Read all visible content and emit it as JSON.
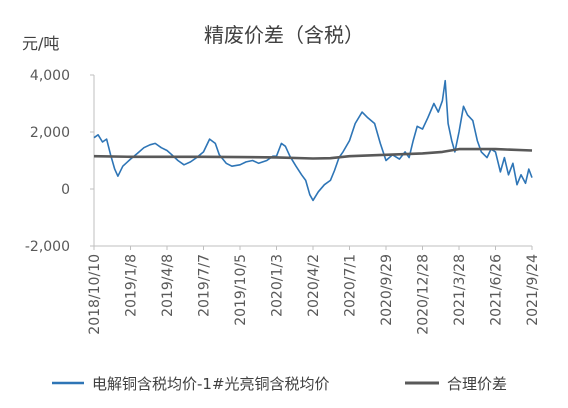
{
  "chart_data": {
    "type": "line",
    "title": "精废价差（含税）",
    "unit_label": "元/吨",
    "ylabel": "元/吨",
    "xlabel": "",
    "ylim": [
      -2000,
      4000
    ],
    "y_ticks": [
      "4,000",
      "2,000",
      "0",
      "-2,000"
    ],
    "y_tick_values": [
      4000,
      2000,
      0,
      -2000
    ],
    "x_range": [
      "2018-10-10",
      "2021-09-24"
    ],
    "x_ticks": [
      "2018/10/10",
      "2019/1/8",
      "2019/4/8",
      "2019/7/7",
      "2019/10/5",
      "2020/1/3",
      "2020/4/2",
      "2020/7/1",
      "2020/9/29",
      "2020/12/28",
      "2021/3/28",
      "2021/6/26",
      "2021/9/24"
    ],
    "x_tick_dates": [
      "2018-10-10",
      "2019-01-08",
      "2019-04-08",
      "2019-07-07",
      "2019-10-05",
      "2020-01-03",
      "2020-04-02",
      "2020-07-01",
      "2020-09-29",
      "2020-12-28",
      "2021-03-28",
      "2021-06-26",
      "2021-09-24"
    ],
    "grid": false,
    "legend_position": "bottom",
    "series": [
      {
        "name": "电解铜含税均价-1#光亮铜含税均价",
        "color": "#2e75b6",
        "points": [
          [
            "2018-10-10",
            1800
          ],
          [
            "2018-10-20",
            1900
          ],
          [
            "2018-10-31",
            1650
          ],
          [
            "2018-11-10",
            1750
          ],
          [
            "2018-11-20",
            1200
          ],
          [
            "2018-11-30",
            700
          ],
          [
            "2018-12-08",
            450
          ],
          [
            "2018-12-20",
            800
          ],
          [
            "2019-01-08",
            1050
          ],
          [
            "2019-01-25",
            1250
          ],
          [
            "2019-02-10",
            1450
          ],
          [
            "2019-02-25",
            1550
          ],
          [
            "2019-03-10",
            1600
          ],
          [
            "2019-03-25",
            1450
          ],
          [
            "2019-04-08",
            1350
          ],
          [
            "2019-04-20",
            1200
          ],
          [
            "2019-05-05",
            1000
          ],
          [
            "2019-05-20",
            850
          ],
          [
            "2019-06-05",
            950
          ],
          [
            "2019-06-20",
            1100
          ],
          [
            "2019-07-07",
            1300
          ],
          [
            "2019-07-22",
            1750
          ],
          [
            "2019-08-05",
            1600
          ],
          [
            "2019-08-15",
            1200
          ],
          [
            "2019-09-01",
            900
          ],
          [
            "2019-09-15",
            800
          ],
          [
            "2019-10-05",
            850
          ],
          [
            "2019-10-20",
            950
          ],
          [
            "2019-11-05",
            1000
          ],
          [
            "2019-11-20",
            900
          ],
          [
            "2019-12-10",
            1000
          ],
          [
            "2019-12-25",
            1150
          ],
          [
            "2020-01-03",
            1150
          ],
          [
            "2020-01-15",
            1600
          ],
          [
            "2020-01-25",
            1500
          ],
          [
            "2020-02-05",
            1150
          ],
          [
            "2020-02-20",
            800
          ],
          [
            "2020-03-05",
            500
          ],
          [
            "2020-03-15",
            300
          ],
          [
            "2020-03-25",
            -200
          ],
          [
            "2020-04-02",
            -400
          ],
          [
            "2020-04-15",
            -100
          ],
          [
            "2020-04-30",
            150
          ],
          [
            "2020-05-15",
            300
          ],
          [
            "2020-05-25",
            650
          ],
          [
            "2020-06-05",
            1100
          ],
          [
            "2020-06-15",
            1300
          ],
          [
            "2020-07-01",
            1700
          ],
          [
            "2020-07-15",
            2300
          ],
          [
            "2020-08-01",
            2700
          ],
          [
            "2020-08-15",
            2500
          ],
          [
            "2020-09-01",
            2300
          ],
          [
            "2020-09-15",
            1600
          ],
          [
            "2020-09-29",
            1000
          ],
          [
            "2020-10-15",
            1200
          ],
          [
            "2020-11-01",
            1050
          ],
          [
            "2020-11-15",
            1300
          ],
          [
            "2020-11-25",
            1100
          ],
          [
            "2020-12-05",
            1700
          ],
          [
            "2020-12-15",
            2200
          ],
          [
            "2020-12-28",
            2100
          ],
          [
            "2021-01-10",
            2500
          ],
          [
            "2021-01-25",
            3000
          ],
          [
            "2021-02-05",
            2700
          ],
          [
            "2021-02-15",
            3100
          ],
          [
            "2021-02-22",
            3800
          ],
          [
            "2021-03-01",
            2300
          ],
          [
            "2021-03-10",
            1700
          ],
          [
            "2021-03-18",
            1300
          ],
          [
            "2021-03-28",
            2000
          ],
          [
            "2021-04-08",
            2900
          ],
          [
            "2021-04-18",
            2600
          ],
          [
            "2021-05-01",
            2400
          ],
          [
            "2021-05-12",
            1700
          ],
          [
            "2021-05-22",
            1300
          ],
          [
            "2021-06-05",
            1100
          ],
          [
            "2021-06-15",
            1400
          ],
          [
            "2021-06-26",
            1300
          ],
          [
            "2021-07-08",
            600
          ],
          [
            "2021-07-18",
            1100
          ],
          [
            "2021-07-28",
            500
          ],
          [
            "2021-08-08",
            900
          ],
          [
            "2021-08-18",
            150
          ],
          [
            "2021-08-28",
            500
          ],
          [
            "2021-09-08",
            200
          ],
          [
            "2021-09-16",
            700
          ],
          [
            "2021-09-24",
            400
          ]
        ]
      },
      {
        "name": "合理价差",
        "color": "#595959",
        "points": [
          [
            "2018-10-10",
            1150
          ],
          [
            "2019-01-08",
            1130
          ],
          [
            "2019-04-08",
            1130
          ],
          [
            "2019-07-07",
            1130
          ],
          [
            "2019-10-05",
            1120
          ],
          [
            "2020-01-03",
            1110
          ],
          [
            "2020-04-02",
            1070
          ],
          [
            "2020-05-15",
            1080
          ],
          [
            "2020-07-01",
            1150
          ],
          [
            "2020-09-29",
            1200
          ],
          [
            "2020-12-28",
            1250
          ],
          [
            "2021-02-15",
            1300
          ],
          [
            "2021-03-28",
            1400
          ],
          [
            "2021-06-26",
            1400
          ],
          [
            "2021-09-24",
            1350
          ]
        ]
      }
    ]
  }
}
